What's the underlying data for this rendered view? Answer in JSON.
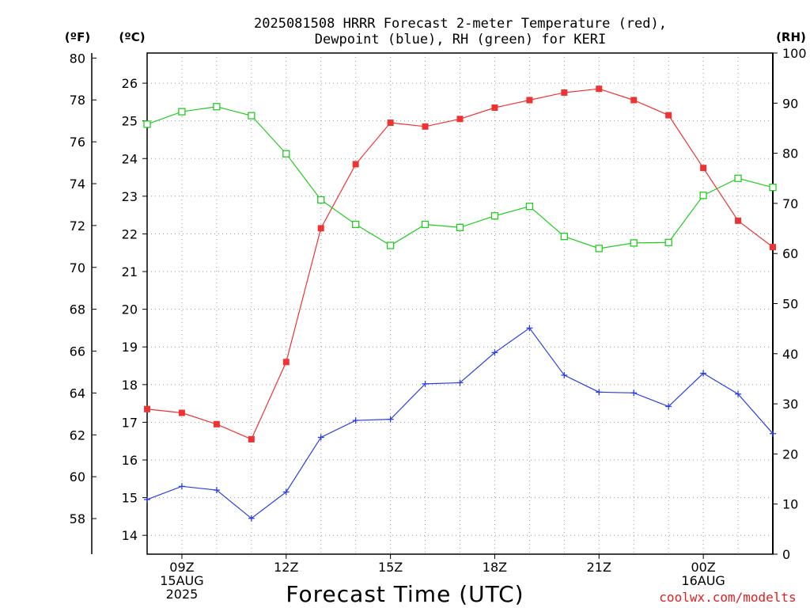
{
  "title_line1": "2025081508 HRRR Forecast 2-meter Temperature (red),",
  "title_line2": "Dewpoint (blue), RH (green) for KERI",
  "unit_f": "(ºF)",
  "unit_c": "(ºC)",
  "unit_rh": "(RH)",
  "xlabel": "Forecast Time (UTC)",
  "credit": "coolwx.com/modelts",
  "colors": {
    "temperature": "#ee3333",
    "dewpoint": "#2a3ee8",
    "rh": "#22cc22",
    "grid": "#999999",
    "credit": "#e02020"
  },
  "chart_data": {
    "type": "line",
    "x": [
      8,
      9,
      10,
      11,
      12,
      13,
      14,
      15,
      16,
      17,
      18,
      19,
      20,
      21,
      22,
      23,
      24,
      25,
      26
    ],
    "xlim": [
      8,
      26
    ],
    "x_ticks": [
      {
        "x": 9,
        "lines": [
          "09Z",
          "15AUG",
          "2025"
        ]
      },
      {
        "x": 12,
        "lines": [
          "12Z"
        ]
      },
      {
        "x": 15,
        "lines": [
          "15Z"
        ]
      },
      {
        "x": 18,
        "lines": [
          "18Z"
        ]
      },
      {
        "x": 21,
        "lines": [
          "21Z"
        ]
      },
      {
        "x": 24,
        "lines": [
          "00Z",
          "16AUG"
        ]
      }
    ],
    "celsius_axis": {
      "ylim": [
        13.5,
        26.8
      ],
      "ticks": [
        14,
        15,
        16,
        17,
        18,
        19,
        20,
        21,
        22,
        23,
        24,
        25,
        26
      ]
    },
    "fahrenheit_axis": {
      "ticks": [
        58,
        60,
        62,
        64,
        66,
        68,
        70,
        72,
        74,
        76,
        78,
        80
      ]
    },
    "rh_axis": {
      "ylim": [
        0,
        100
      ],
      "ticks": [
        0,
        10,
        20,
        30,
        40,
        50,
        60,
        70,
        80,
        90,
        100
      ]
    },
    "series": [
      {
        "name": "Temperature",
        "axis": "celsius",
        "marker": "filled-square",
        "values": [
          17.35,
          17.25,
          16.95,
          16.55,
          18.6,
          22.15,
          23.85,
          24.95,
          24.85,
          25.05,
          25.35,
          25.55,
          25.75,
          25.85,
          25.55,
          25.15,
          23.75,
          22.35,
          21.65
        ]
      },
      {
        "name": "Dewpoint",
        "axis": "celsius",
        "marker": "plus",
        "values": [
          14.95,
          15.3,
          15.2,
          14.45,
          15.15,
          16.6,
          17.05,
          17.08,
          18.02,
          18.05,
          18.85,
          19.5,
          18.25,
          17.8,
          17.78,
          17.42,
          18.3,
          17.75,
          16.7
        ]
      },
      {
        "name": "RH",
        "axis": "rh",
        "marker": "open-square",
        "values": [
          85.8,
          88.3,
          89.3,
          87.5,
          79.9,
          70.7,
          65.8,
          61.6,
          65.8,
          65.2,
          67.5,
          69.4,
          63.4,
          61.0,
          62.1,
          62.2,
          71.6,
          75.0,
          73.2
        ]
      }
    ]
  }
}
